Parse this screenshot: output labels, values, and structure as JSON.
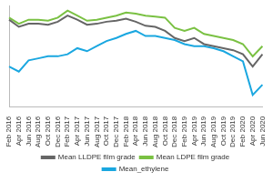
{
  "chart_data": {
    "type": "line",
    "categories": [
      "Feb 2016",
      "Apr 2016",
      "Jun 2016",
      "Aug 2016",
      "Oct 2016",
      "Dec 2016",
      "Feb 2017",
      "Apr 2017",
      "Jun 2017",
      "Aug 2017",
      "Oct 2017",
      "Dec 2017",
      "Feb 2018",
      "Apr 2018",
      "Jun 2018",
      "Aug 2018",
      "Oct 2018",
      "Dec 2018",
      "Feb 2019",
      "Apr 2019",
      "Jun 2019",
      "Aug 2019",
      "Oct 2019",
      "Dec 2019",
      "Feb 2020",
      "Apr 2020",
      "Jun 2020"
    ],
    "series": [
      {
        "name": "Mean LLDPE film grade",
        "color": "#666666",
        "values": [
          86,
          79,
          82,
          82,
          81,
          84,
          90,
          86,
          81,
          82,
          84,
          85,
          87,
          84,
          80,
          79,
          75,
          68,
          65,
          68,
          62,
          60,
          58,
          56,
          52,
          40,
          52
        ]
      },
      {
        "name": "Mean LDPE film grade",
        "color": "#7ac143",
        "values": [
          88,
          82,
          86,
          86,
          85,
          88,
          95,
          90,
          85,
          86,
          88,
          90,
          93,
          92,
          90,
          89,
          88,
          78,
          75,
          78,
          72,
          70,
          68,
          66,
          62,
          50,
          60
        ]
      },
      {
        "name": "Mean_ethylene",
        "color": "#1aa7e0",
        "values": [
          40,
          35,
          46,
          48,
          50,
          50,
          52,
          58,
          55,
          60,
          65,
          68,
          72,
          75,
          70,
          70,
          68,
          66,
          62,
          60,
          60,
          58,
          55,
          50,
          45,
          12,
          22
        ]
      }
    ],
    "ylim": [
      0,
      100
    ],
    "grid": false,
    "legend": "bottom",
    "tick_labels": "x"
  }
}
